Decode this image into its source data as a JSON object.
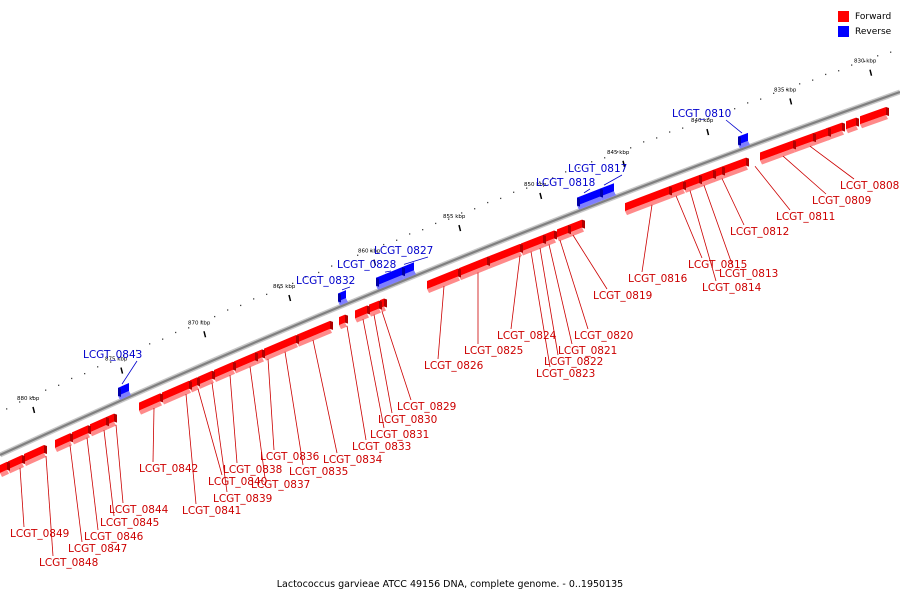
{
  "legend": [
    {
      "label": "Forward",
      "color": "#ff0000"
    },
    {
      "label": "Reverse",
      "color": "#0000ff"
    }
  ],
  "caption": "Lactococcus garvieae ATCC 49156 DNA, complete genome. - 0..1950135",
  "colors": {
    "forward": "#ff0000",
    "forward_dark": "#b00000",
    "forward_light": "#ff8a8a",
    "reverse": "#0000ff",
    "reverse_dark": "#0000a8",
    "reverse_light": "#7f7fff",
    "backbone": "#808080",
    "label_forward": "#cc0000",
    "label_reverse": "#0000cc"
  },
  "scale_ticks": [
    "830 kbp",
    "835 kbp",
    "840 kbp",
    "845 kbp",
    "850 kbp",
    "855 kbp",
    "860 kbp",
    "865 kbp",
    "870 kbp",
    "875 kbp",
    "880 kbp"
  ],
  "forward_genes": [
    "LCGT_0808",
    "LCGT_0809",
    "LCGT_0811",
    "LCGT_0812",
    "LCGT_0813",
    "LCGT_0814",
    "LCGT_0815",
    "LCGT_0816",
    "LCGT_0819",
    "LCGT_0820",
    "LCGT_0821",
    "LCGT_0822",
    "LCGT_0823",
    "LCGT_0824",
    "LCGT_0825",
    "LCGT_0826",
    "LCGT_0829",
    "LCGT_0830",
    "LCGT_0831",
    "LCGT_0833",
    "LCGT_0834",
    "LCGT_0835",
    "LCGT_0836",
    "LCGT_0837",
    "LCGT_0838",
    "LCGT_0839",
    "LCGT_0840",
    "LCGT_0841",
    "LCGT_0842",
    "LCGT_0844",
    "LCGT_0845",
    "LCGT_0846",
    "LCGT_0847",
    "LCGT_0848",
    "LCGT_0849"
  ],
  "reverse_genes": [
    "LCGT_0810",
    "LCGT_0817",
    "LCGT_0818",
    "LCGT_0827",
    "LCGT_0828",
    "LCGT_0832",
    "LCGT_0843"
  ]
}
